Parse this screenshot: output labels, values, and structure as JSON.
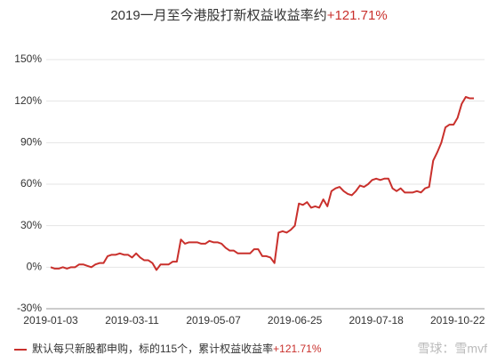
{
  "chart_data": {
    "type": "line",
    "title": "2019一月至今港股打新权益收益率约",
    "title_highlight": "+121.71%",
    "categories": [
      "2019-01-03",
      null,
      null,
      null,
      null,
      null,
      null,
      null,
      null,
      null,
      null,
      null,
      null,
      null,
      null,
      null,
      null,
      null,
      null,
      null,
      "2019-03-11",
      null,
      null,
      null,
      null,
      null,
      null,
      null,
      null,
      null,
      null,
      null,
      null,
      null,
      null,
      null,
      null,
      null,
      null,
      null,
      "2019-05-07",
      null,
      null,
      null,
      null,
      null,
      null,
      null,
      null,
      null,
      null,
      null,
      null,
      null,
      null,
      null,
      null,
      null,
      null,
      null,
      "2019-06-25",
      null,
      null,
      null,
      null,
      null,
      null,
      null,
      null,
      null,
      null,
      null,
      null,
      null,
      null,
      null,
      null,
      null,
      null,
      null,
      "2019-07-18",
      null,
      null,
      null,
      null,
      null,
      null,
      null,
      null,
      null,
      null,
      null,
      null,
      null,
      null,
      null,
      null,
      null,
      null,
      null,
      "2019-10-22",
      null,
      null,
      null,
      null
    ],
    "series": [
      {
        "name": "默认每只新股都申购，标的115个，累计权益收益率",
        "color": "#c9302c",
        "values": [
          0,
          -1,
          -1,
          0,
          -1,
          0,
          0,
          2,
          2,
          1,
          0,
          2,
          3,
          3,
          8,
          9,
          9,
          10,
          9,
          9,
          7,
          10,
          7,
          5,
          5,
          3,
          -2,
          2,
          2,
          2,
          4,
          4,
          20,
          17,
          18,
          18,
          18,
          17,
          17,
          19,
          18,
          18,
          17,
          14,
          12,
          12,
          10,
          10,
          10,
          10,
          13,
          13,
          8,
          8,
          7,
          3,
          25,
          26,
          25,
          27,
          30,
          46,
          45,
          47,
          43,
          44,
          43,
          49,
          44,
          55,
          57,
          58,
          55,
          53,
          52,
          55,
          59,
          58,
          60,
          63,
          64,
          63,
          64,
          64,
          57,
          55,
          57,
          54,
          54,
          54,
          55,
          54,
          57,
          58,
          77,
          83,
          90,
          101,
          103,
          103,
          108,
          118,
          123,
          122,
          122
        ]
      }
    ],
    "legend_highlight": "+121.71%",
    "watermark": "雪球：雪mvf",
    "ylim": [
      -30,
      150
    ],
    "yticks": [
      {
        "value": -30,
        "label": "-30%"
      },
      {
        "value": 0,
        "label": "0%"
      },
      {
        "value": 30,
        "label": "30%"
      },
      {
        "value": 60,
        "label": "60%"
      },
      {
        "value": 90,
        "label": "90%"
      },
      {
        "value": 120,
        "label": "120%"
      },
      {
        "value": 150,
        "label": "150%"
      }
    ],
    "grid": true
  }
}
